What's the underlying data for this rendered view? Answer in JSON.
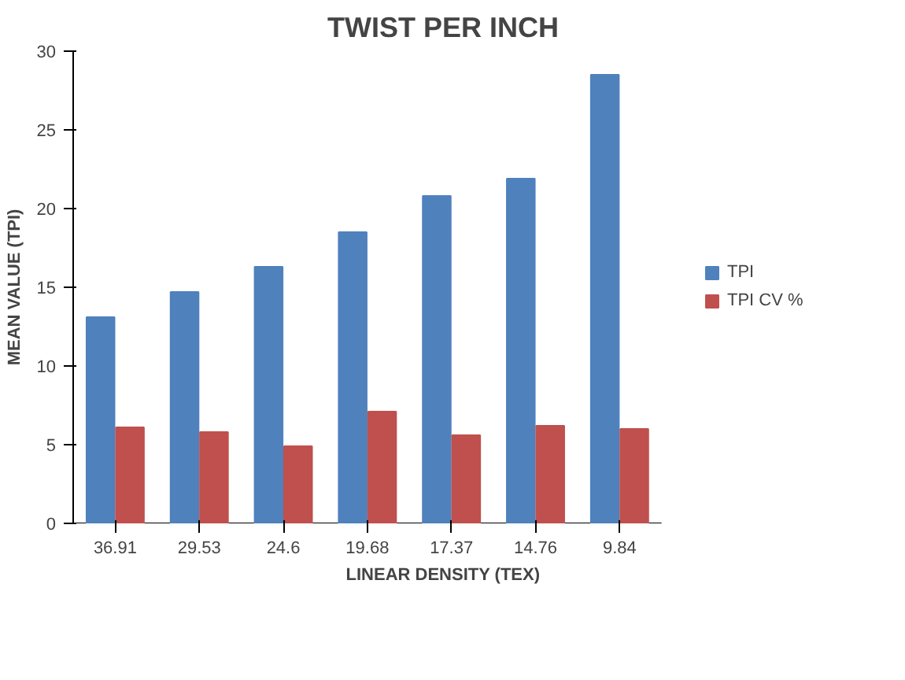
{
  "chart_data": {
    "type": "bar",
    "title": "TWIST PER INCH",
    "xlabel": "LINEAR DENSITY (TEX)",
    "ylabel": "MEAN VALUE (TPI)",
    "categories": [
      "36.91",
      "29.53",
      "24.6",
      "19.68",
      "17.37",
      "14.76",
      "9.84"
    ],
    "series": [
      {
        "name": "TPI",
        "color": "#4f81bd",
        "values": [
          13.1,
          14.7,
          16.3,
          18.5,
          20.8,
          21.9,
          28.5
        ]
      },
      {
        "name": "TPI CV %",
        "color": "#c0504d",
        "values": [
          6.1,
          5.8,
          4.9,
          7.1,
          5.6,
          6.2,
          6.0
        ]
      }
    ],
    "ylim": [
      0,
      30
    ],
    "yticks": [
      0,
      5,
      10,
      15,
      20,
      25,
      30
    ],
    "grid": false,
    "legend": "right"
  }
}
